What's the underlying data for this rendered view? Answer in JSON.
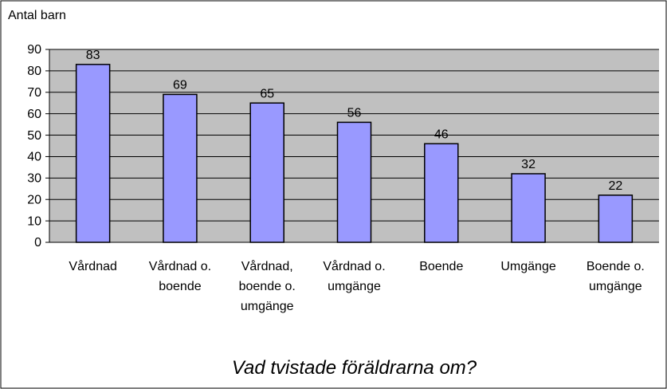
{
  "chart_data": {
    "type": "bar",
    "title": "Vad tvistade föräldrarna om?",
    "y_label": "Antal barn",
    "categories": [
      "Vårdnad",
      "Vårdnad o. boende",
      "Vårdnad, boende o. umgänge",
      "Vårdnad o. umgänge",
      "Boende",
      "Umgänge",
      "Boende o. umgänge"
    ],
    "values": [
      83,
      69,
      65,
      56,
      46,
      32,
      22
    ],
    "color": "#9999ff",
    "ylim": [
      0,
      90
    ],
    "yticks": [
      0,
      10,
      20,
      30,
      40,
      50,
      60,
      70,
      80,
      90
    ],
    "grid": true
  }
}
